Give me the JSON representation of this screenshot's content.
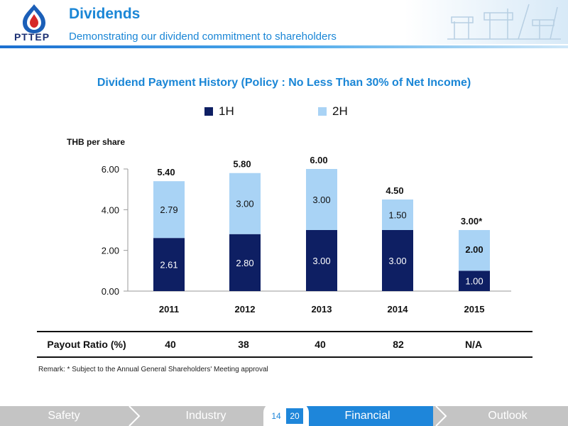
{
  "header": {
    "logo_text": "PTTEP",
    "title": "Dividends",
    "subtitle": "Demonstrating our dividend commitment to shareholders"
  },
  "chart_data": {
    "type": "bar",
    "stacked": true,
    "title": "Dividend Payment History (Policy : No Less Than 30% of Net Income)",
    "ylabel": "THB per share",
    "ylim": [
      0,
      6
    ],
    "yticks": [
      "0.00",
      "2.00",
      "4.00",
      "6.00"
    ],
    "categories": [
      "2011",
      "2012",
      "2013",
      "2014",
      "2015"
    ],
    "series": [
      {
        "name": "1H",
        "color": "#0e1f63",
        "values": [
          2.61,
          2.8,
          3.0,
          3.0,
          1.0
        ],
        "labels": [
          "2.61",
          "2.80",
          "3.00",
          "3.00",
          "1.00"
        ]
      },
      {
        "name": "2H",
        "color": "#a9d3f5",
        "values": [
          2.79,
          3.0,
          3.0,
          1.5,
          2.0
        ],
        "labels": [
          "2.79",
          "3.00",
          "3.00",
          "1.50",
          "2.00"
        ]
      }
    ],
    "totals": [
      "5.40",
      "5.80",
      "6.00",
      "4.50",
      "3.00*"
    ],
    "legend_position": "top"
  },
  "payout": {
    "label": "Payout Ratio (%)",
    "values": [
      "40",
      "38",
      "40",
      "82",
      "N/A"
    ]
  },
  "remark": "Remark:  *   Subject to the Annual General Shareholders' Meeting approval",
  "footer": {
    "tabs": [
      "Safety",
      "Industry",
      "Financial",
      "Outlook"
    ],
    "active": "Financial",
    "pages": [
      "14",
      "20"
    ]
  }
}
